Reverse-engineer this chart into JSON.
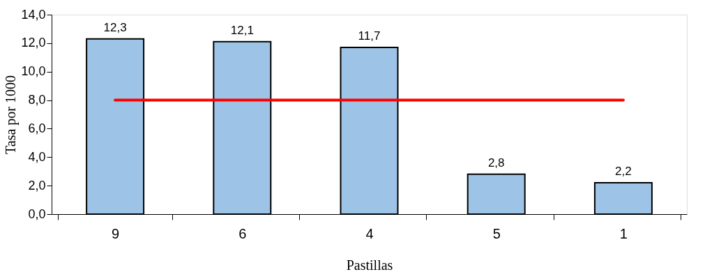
{
  "chart_data": {
    "type": "bar",
    "xlabel": "Pastillas",
    "ylabel": "Tasa por 1000",
    "categories": [
      "9",
      "6",
      "4",
      "5",
      "1"
    ],
    "series": [
      {
        "color": "#9dc3e6",
        "values": [
          12.3,
          12.1,
          11.7,
          2.8,
          2.2
        ],
        "value_labels": [
          "12,3",
          "12,1",
          "11,7",
          "2,8",
          "2,2"
        ]
      },
      {
        "type": "line",
        "color": "#ff0000",
        "values": [
          8.0,
          8.0,
          8.0,
          8.0,
          8.0
        ]
      }
    ],
    "ylim": [
      0,
      14
    ],
    "yticks": [
      {
        "value": 0,
        "label": "0,0"
      },
      {
        "value": 2,
        "label": "2,0"
      },
      {
        "value": 4,
        "label": "4,0"
      },
      {
        "value": 6,
        "label": "6,0"
      },
      {
        "value": 8,
        "label": "8,0"
      },
      {
        "value": 10,
        "label": "10,0"
      },
      {
        "value": 12,
        "label": "12,0"
      },
      {
        "value": 14,
        "label": "14,0"
      }
    ],
    "grid": false
  }
}
